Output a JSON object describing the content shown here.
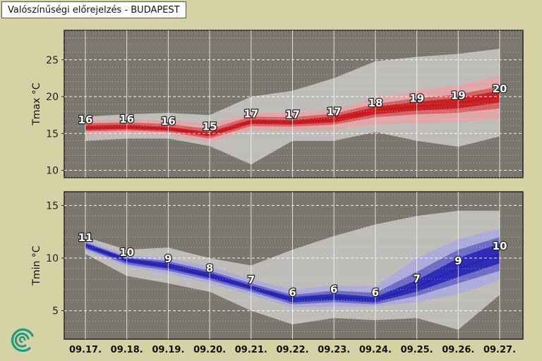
{
  "title": "Valószínűségi előrejelzés - BUDAPEST",
  "logo_icon": "swirl-logo-icon",
  "colors": {
    "background": "#d6d2a6",
    "plot_background": "#7a776f",
    "outer_band": "#c6c4c2",
    "tmax_main": "#c4161c",
    "tmax_light": "#e6a3a4",
    "tmin_main": "#2321b0",
    "tmin_light": "#a9a8dc",
    "logo": "#1c9c7e"
  },
  "chart_data": [
    {
      "type": "area",
      "ylabel": "Tmax °C",
      "ylim": [
        9,
        29
      ],
      "yticks": [
        10,
        15,
        20,
        25
      ],
      "grid": true,
      "x": [
        "09.17.",
        "09.18.",
        "09.19.",
        "09.20.",
        "09.21.",
        "09.22.",
        "09.23.",
        "09.24.",
        "09.25.",
        "09.26.",
        "09.27."
      ],
      "median_labels": [
        16,
        16,
        16,
        15,
        17,
        17,
        17,
        18,
        19,
        19,
        20
      ],
      "median": [
        15.8,
        15.9,
        15.6,
        14.9,
        16.6,
        16.5,
        16.9,
        18.1,
        18.7,
        19.1,
        20.0
      ],
      "bands": [
        {
          "name": "outer",
          "lower": [
            14.0,
            14.3,
            14.3,
            13.3,
            10.8,
            14.0,
            14.0,
            15.2,
            14.0,
            13.2,
            14.6
          ],
          "upper": [
            17.3,
            17.6,
            17.8,
            17.5,
            20.0,
            20.8,
            22.5,
            24.8,
            25.4,
            25.8,
            26.5
          ]
        },
        {
          "name": "wide",
          "lower": [
            14.8,
            15.0,
            14.8,
            13.8,
            15.5,
            15.4,
            15.5,
            16.2,
            16.4,
            16.5,
            17.0
          ],
          "upper": [
            16.8,
            16.9,
            16.8,
            16.3,
            17.8,
            17.8,
            18.3,
            19.8,
            20.8,
            21.5,
            22.8
          ]
        },
        {
          "name": "mid",
          "lower": [
            15.3,
            15.4,
            15.2,
            14.3,
            16.0,
            15.9,
            16.2,
            17.2,
            17.6,
            17.8,
            18.4
          ],
          "upper": [
            16.4,
            16.5,
            16.3,
            15.6,
            17.3,
            17.2,
            17.7,
            19.0,
            19.8,
            20.3,
            21.4
          ]
        },
        {
          "name": "inner",
          "lower": [
            15.5,
            15.6,
            15.4,
            14.6,
            16.3,
            16.2,
            16.5,
            17.6,
            18.1,
            18.4,
            19.2
          ],
          "upper": [
            16.1,
            16.2,
            15.9,
            15.2,
            16.9,
            16.8,
            17.3,
            18.6,
            19.3,
            19.8,
            20.8
          ]
        }
      ]
    },
    {
      "type": "area",
      "ylabel": "Tmin °C",
      "ylim": [
        2.3,
        16.3
      ],
      "yticks": [
        5,
        10,
        15
      ],
      "grid": true,
      "x": [
        "09.17.",
        "09.18.",
        "09.19.",
        "09.20.",
        "09.21.",
        "09.22.",
        "09.23.",
        "09.24.",
        "09.25.",
        "09.26.",
        "09.27."
      ],
      "median_labels": [
        11,
        10,
        9,
        8,
        7,
        6,
        6,
        6,
        7,
        9,
        10
      ],
      "median": [
        11.2,
        9.8,
        9.2,
        8.3,
        7.2,
        6.0,
        6.3,
        6.0,
        7.3,
        9.0,
        10.4
      ],
      "bands": [
        {
          "name": "outer",
          "lower": [
            10.4,
            8.3,
            7.6,
            6.8,
            5.0,
            3.7,
            4.3,
            4.1,
            4.3,
            3.2,
            6.5
          ],
          "upper": [
            12.0,
            10.8,
            11.0,
            10.0,
            9.3,
            10.8,
            12.1,
            13.2,
            14.0,
            14.5,
            14.5
          ]
        },
        {
          "name": "wide",
          "lower": [
            10.7,
            9.2,
            8.5,
            7.6,
            6.5,
            5.3,
            5.4,
            5.4,
            5.8,
            6.6,
            7.9
          ],
          "upper": [
            11.7,
            10.3,
            10.0,
            9.2,
            8.0,
            7.0,
            7.4,
            7.3,
            10.0,
            11.8,
            12.8
          ]
        },
        {
          "name": "mid",
          "lower": [
            10.9,
            9.4,
            8.8,
            7.9,
            6.8,
            5.6,
            5.8,
            5.6,
            6.4,
            7.6,
            8.8
          ],
          "upper": [
            11.5,
            10.1,
            9.7,
            8.8,
            7.6,
            6.5,
            6.9,
            6.7,
            8.7,
            10.8,
            12.0
          ]
        },
        {
          "name": "inner",
          "lower": [
            11.0,
            9.6,
            9.0,
            8.1,
            7.0,
            5.8,
            6.0,
            5.8,
            6.8,
            8.2,
            9.5
          ],
          "upper": [
            11.4,
            10.0,
            9.5,
            8.6,
            7.4,
            6.3,
            6.6,
            6.3,
            7.9,
            10.0,
            11.4
          ]
        }
      ]
    }
  ]
}
